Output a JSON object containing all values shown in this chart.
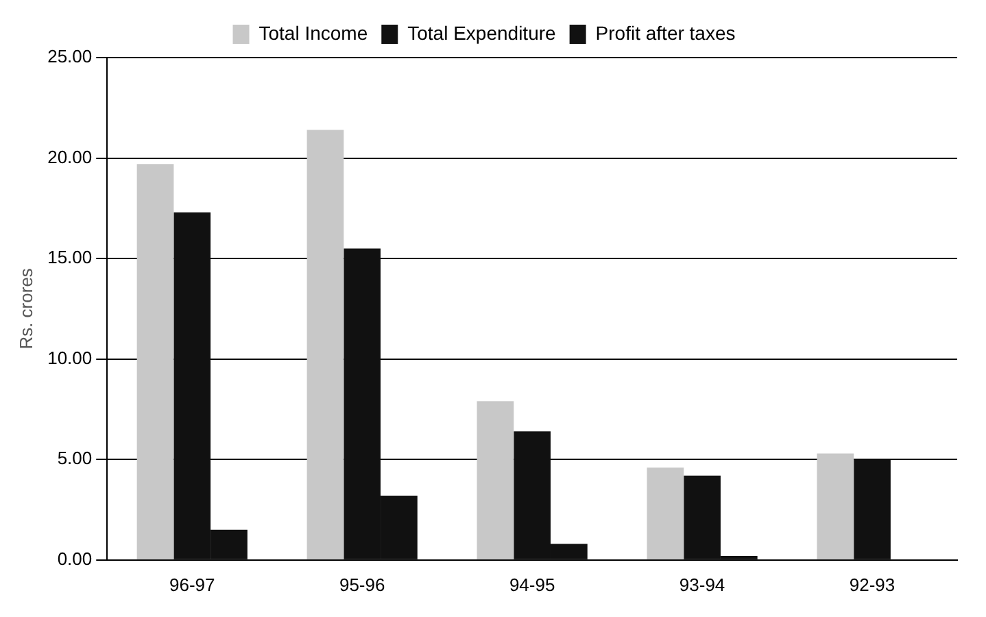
{
  "chart_data": {
    "type": "bar",
    "ylabel": "Rs. crores",
    "categories": [
      "96-97",
      "95-96",
      "94-95",
      "93-94",
      "92-93"
    ],
    "series": [
      {
        "name": "Total Income",
        "color": "#c8c8c8",
        "values": [
          19.7,
          21.4,
          7.9,
          4.6,
          5.3
        ]
      },
      {
        "name": "Total Expenditure",
        "color": "#111111",
        "values": [
          17.3,
          15.5,
          6.4,
          4.2,
          5.0
        ]
      },
      {
        "name": "Profit after taxes",
        "color": "#111111",
        "values": [
          1.5,
          3.2,
          0.8,
          0.2,
          0
        ]
      }
    ],
    "ylim": [
      0,
      25
    ],
    "yticks": [
      {
        "value": 0,
        "label": "0.00"
      },
      {
        "value": 5,
        "label": "5.00"
      },
      {
        "value": 10,
        "label": "10.00"
      },
      {
        "value": 15,
        "label": "15.00"
      },
      {
        "value": 20,
        "label": "20.00"
      },
      {
        "value": 25,
        "label": "25.00"
      }
    ],
    "grid": "y",
    "legend": "top"
  }
}
